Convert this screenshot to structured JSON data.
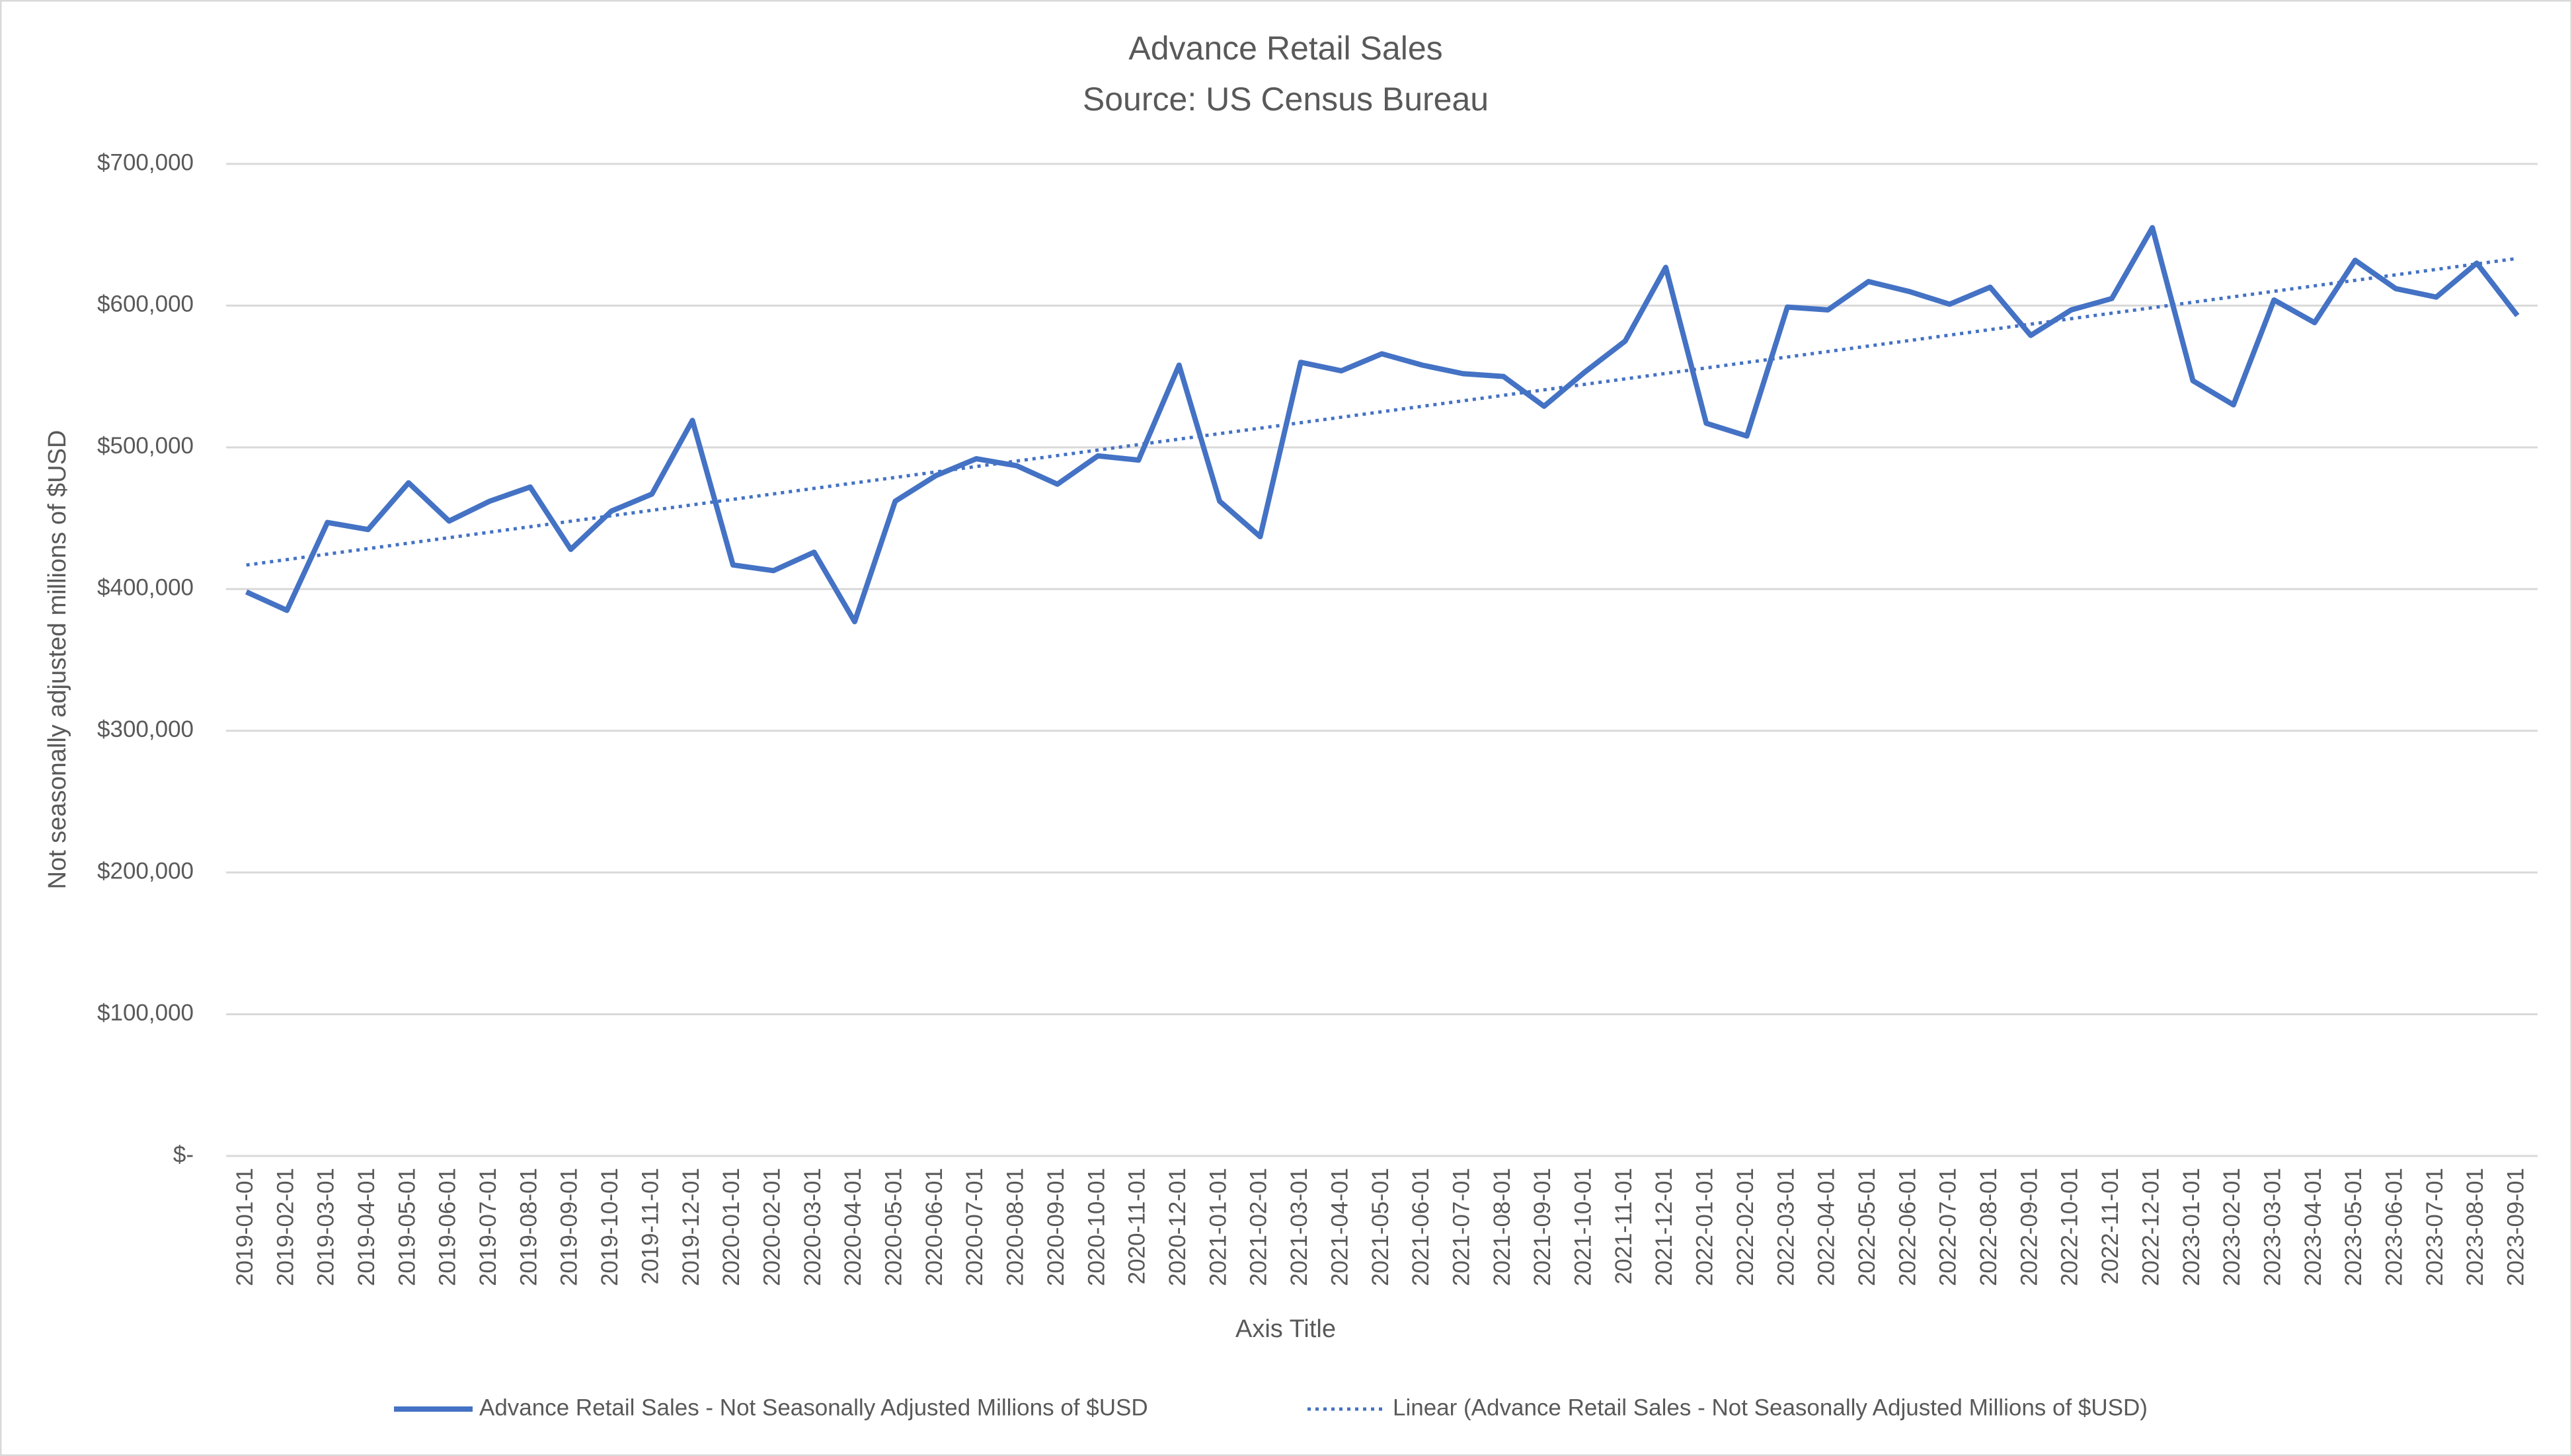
{
  "chart_data": {
    "type": "line",
    "title": "Advance Retail Sales",
    "subtitle": "Source: US Census Bureau",
    "x_axis_label": "Axis Title",
    "y_axis_label": "Not seasonally adjusted millions of $USD",
    "categories": [
      "2019-01-01",
      "2019-02-01",
      "2019-03-01",
      "2019-04-01",
      "2019-05-01",
      "2019-06-01",
      "2019-07-01",
      "2019-08-01",
      "2019-09-01",
      "2019-10-01",
      "2019-11-01",
      "2019-12-01",
      "2020-01-01",
      "2020-02-01",
      "2020-03-01",
      "2020-04-01",
      "2020-05-01",
      "2020-06-01",
      "2020-07-01",
      "2020-08-01",
      "2020-09-01",
      "2020-10-01",
      "2020-11-01",
      "2020-12-01",
      "2021-01-01",
      "2021-02-01",
      "2021-03-01",
      "2021-04-01",
      "2021-05-01",
      "2021-06-01",
      "2021-07-01",
      "2021-08-01",
      "2021-09-01",
      "2021-10-01",
      "2021-11-01",
      "2021-12-01",
      "2022-01-01",
      "2022-02-01",
      "2022-03-01",
      "2022-04-01",
      "2022-05-01",
      "2022-06-01",
      "2022-07-01",
      "2022-08-01",
      "2022-09-01",
      "2022-10-01",
      "2022-11-01",
      "2022-12-01",
      "2023-01-01",
      "2023-02-01",
      "2023-03-01",
      "2023-04-01",
      "2023-05-01",
      "2023-06-01",
      "2023-07-01",
      "2023-08-01",
      "2023-09-01"
    ],
    "series": [
      {
        "name": "Advance Retail Sales - Not Seasonally Adjusted Millions of $USD",
        "color": "#4472c4",
        "values": [
          398000,
          385000,
          447000,
          442000,
          475000,
          448000,
          462000,
          472000,
          428000,
          455000,
          467000,
          519000,
          417000,
          413000,
          426000,
          377000,
          462000,
          480000,
          492000,
          487000,
          474000,
          494000,
          491000,
          558000,
          462000,
          437000,
          560000,
          554000,
          566000,
          558000,
          552000,
          550000,
          529000,
          553000,
          575000,
          627000,
          517000,
          508000,
          599000,
          597000,
          617000,
          610000,
          601000,
          613000,
          579000,
          597000,
          605000,
          655000,
          547000,
          530000,
          604000,
          588000,
          632000,
          612000,
          606000,
          630000,
          593000
        ]
      }
    ],
    "trendline": {
      "name": "Linear (Advance Retail Sales - Not Seasonally Adjusted Millions of $USD)",
      "color": "#4472c4",
      "style": "dotted"
    },
    "ylim": [
      0,
      700000
    ],
    "yticks": [
      {
        "value": 0,
        "label": "$-"
      },
      {
        "value": 100000,
        "label": "$100,000"
      },
      {
        "value": 200000,
        "label": "$200,000"
      },
      {
        "value": 300000,
        "label": "$300,000"
      },
      {
        "value": 400000,
        "label": "$400,000"
      },
      {
        "value": 500000,
        "label": "$500,000"
      },
      {
        "value": 600000,
        "label": "$600,000"
      },
      {
        "value": 700000,
        "label": "$700,000"
      }
    ],
    "grid": true,
    "legend": "bottom"
  }
}
